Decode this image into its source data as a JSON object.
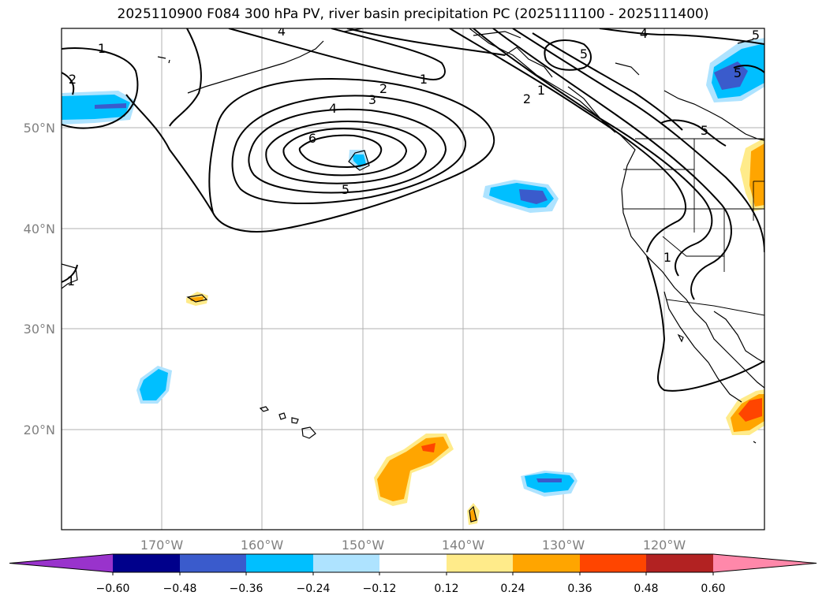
{
  "title": "2025110900 F084 300 hPa PV, river basin precipitation PC (2025111100 - 2025111400)",
  "lat_labels": [
    "50°N",
    "40°N",
    "30°N",
    "20°N"
  ],
  "lon_labels": [
    "170°W",
    "160°W",
    "150°W",
    "140°W",
    "130°W",
    "120°W"
  ],
  "colorbar": {
    "tick_labels": [
      "−0.60",
      "−0.48",
      "−0.36",
      "−0.24",
      "−0.12",
      "0.12",
      "0.24",
      "0.36",
      "0.48",
      "0.60"
    ],
    "colors": [
      "#9933cc",
      "#00008b",
      "#3a5bcc",
      "#00bfff",
      "#aee3ff",
      "#ffffff",
      "#ffeb8a",
      "#ffa500",
      "#ff4500",
      "#b22222",
      "#ff88aa"
    ]
  },
  "contour_labels": [
    "1",
    "2",
    "3",
    "4",
    "5",
    "6",
    "1",
    "2",
    "4",
    "5",
    "1",
    "5",
    "4",
    "5",
    "2",
    "1",
    "1",
    "5"
  ]
}
